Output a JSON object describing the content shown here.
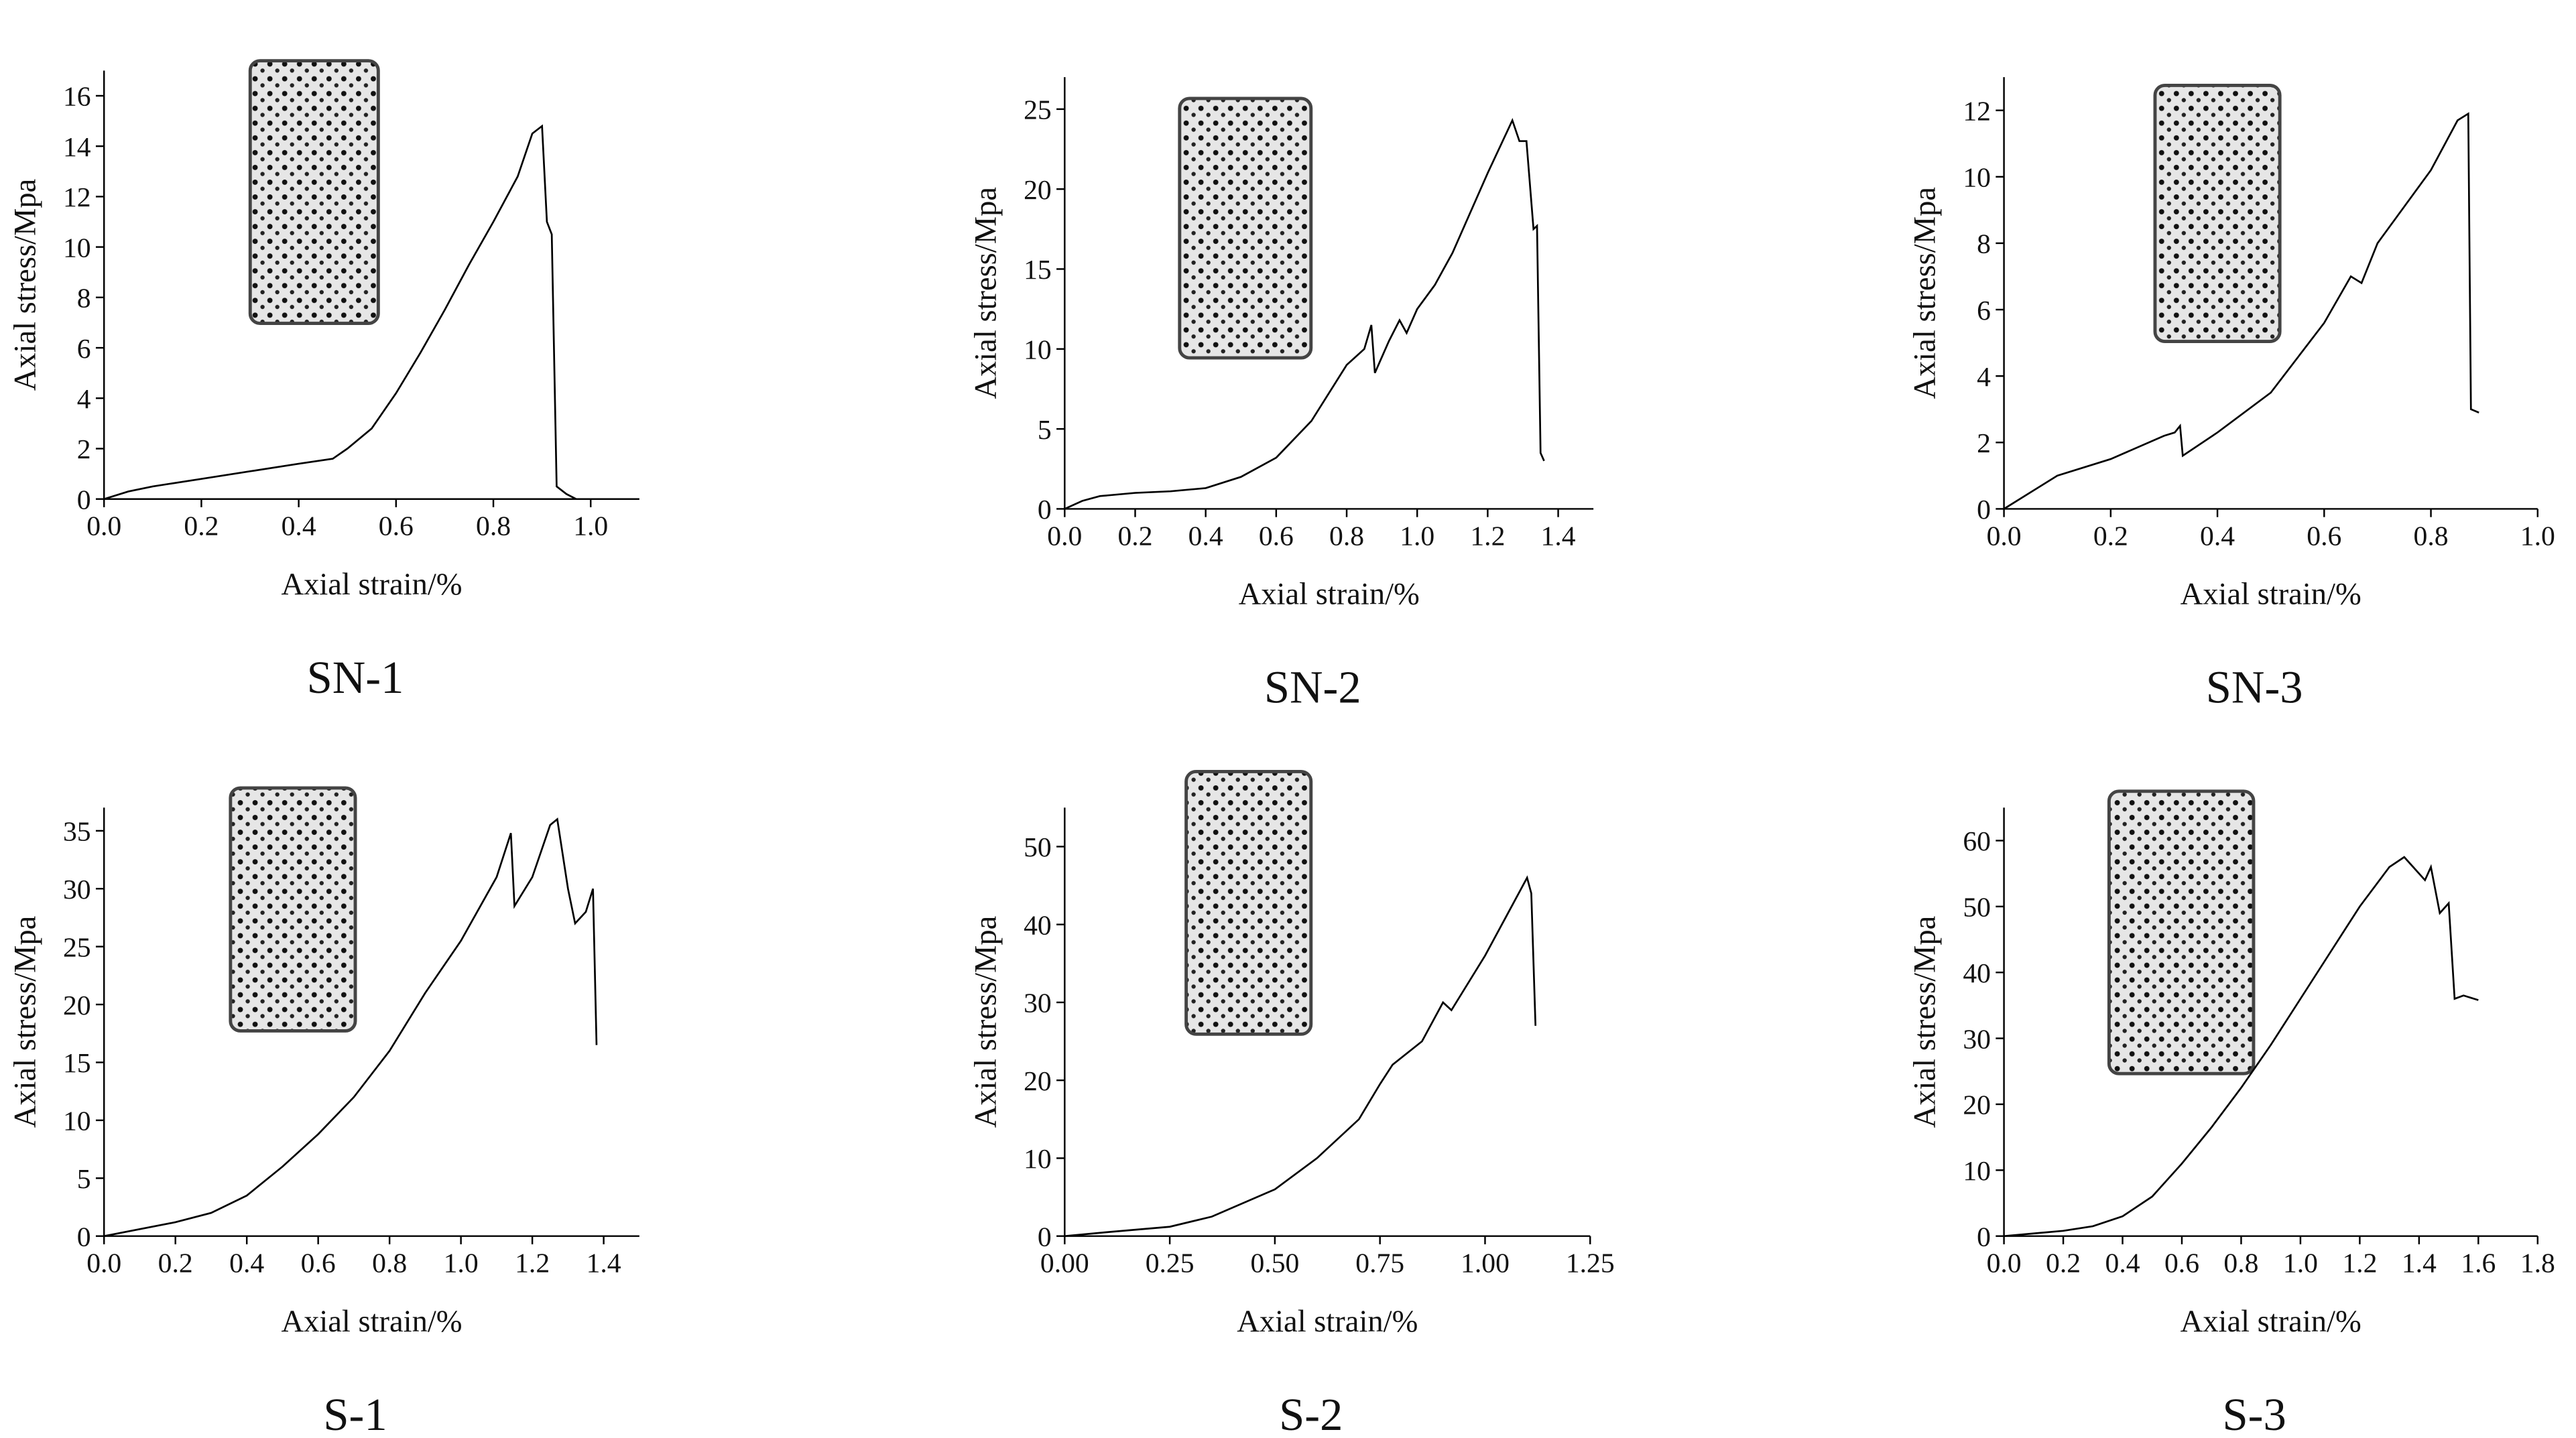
{
  "chart_data": [
    {
      "type": "line",
      "title": "SN-1",
      "x_label": "Axial strain/%",
      "y_label": "Axial stress/Mpa",
      "color": "#000000",
      "x": [
        0,
        0.05,
        0.1,
        0.2,
        0.3,
        0.4,
        0.47,
        0.5,
        0.55,
        0.6,
        0.65,
        0.7,
        0.75,
        0.8,
        0.85,
        0.88,
        0.9,
        0.91,
        0.92,
        0.93,
        0.95,
        0.97
      ],
      "values": [
        0,
        0.3,
        0.5,
        0.8,
        1.1,
        1.4,
        1.6,
        2.0,
        2.8,
        4.2,
        5.8,
        7.5,
        9.3,
        11,
        12.8,
        14.5,
        14.8,
        11,
        10.5,
        0.5,
        0.2,
        0
      ],
      "xlim": [
        0,
        1.1
      ],
      "ylim": [
        0,
        17
      ],
      "xticks": [
        {
          "value": 0,
          "label": "0.0"
        },
        0.2,
        0.4,
        0.6,
        0.8,
        {
          "value": 1,
          "label": "1.0"
        }
      ],
      "yticks": [
        0,
        2,
        4,
        6,
        8,
        10,
        12,
        14,
        16
      ]
    },
    {
      "type": "line",
      "title": "SN-2",
      "x_label": "Axial strain/%",
      "y_label": "Axial stress/Mpa",
      "color": "#000000",
      "x": [
        0,
        0.05,
        0.1,
        0.2,
        0.3,
        0.4,
        0.5,
        0.6,
        0.7,
        0.8,
        0.85,
        0.87,
        0.88,
        0.92,
        0.95,
        0.97,
        1.0,
        1.05,
        1.1,
        1.2,
        1.27,
        1.29,
        1.31,
        1.33,
        1.34,
        1.35,
        1.36
      ],
      "values": [
        0,
        0.5,
        0.8,
        1,
        1.1,
        1.3,
        2,
        3.2,
        5.5,
        9,
        10,
        11.5,
        8.5,
        10.5,
        11.8,
        11,
        12.5,
        14,
        16,
        21,
        24.3,
        23,
        23,
        17.5,
        17.7,
        3.5,
        3
      ],
      "xlim": [
        0,
        1.5
      ],
      "ylim": [
        0,
        27
      ],
      "xticks": [
        {
          "value": 0,
          "label": "0.0"
        },
        0.2,
        0.4,
        0.6,
        0.8,
        {
          "value": 1,
          "label": "1.0"
        },
        1.2,
        1.4
      ],
      "yticks": [
        0,
        5,
        10,
        15,
        20,
        25
      ]
    },
    {
      "type": "line",
      "title": "SN-3",
      "x_label": "Axial strain/%",
      "y_label": "Axial stress/Mpa",
      "color": "#000000",
      "x": [
        0,
        0.05,
        0.1,
        0.2,
        0.3,
        0.32,
        0.33,
        0.335,
        0.4,
        0.5,
        0.6,
        0.65,
        0.67,
        0.7,
        0.8,
        0.85,
        0.87,
        0.875,
        0.89
      ],
      "values": [
        0,
        0.5,
        1,
        1.5,
        2.2,
        2.3,
        2.5,
        1.6,
        2.3,
        3.5,
        5.6,
        7,
        6.8,
        8,
        10.2,
        11.7,
        11.9,
        3,
        2.9
      ],
      "xlim": [
        0,
        1.0
      ],
      "ylim": [
        0,
        13
      ],
      "xticks": [
        {
          "value": 0,
          "label": "0.0"
        },
        0.2,
        0.4,
        0.6,
        0.8,
        {
          "value": 1,
          "label": "1.0"
        }
      ],
      "yticks": [
        0,
        2,
        4,
        6,
        8,
        10,
        12
      ]
    },
    {
      "type": "line",
      "title": "S-1",
      "x_label": "Axial strain/%",
      "y_label": "Axial stress/Mpa",
      "color": "#000000",
      "x": [
        0,
        0.2,
        0.3,
        0.4,
        0.5,
        0.6,
        0.7,
        0.8,
        0.9,
        1.0,
        1.1,
        1.14,
        1.15,
        1.2,
        1.25,
        1.27,
        1.3,
        1.32,
        1.35,
        1.37,
        1.38
      ],
      "values": [
        0,
        1.2,
        2,
        3.5,
        6,
        8.8,
        12,
        16,
        21,
        25.5,
        31,
        34.8,
        28.5,
        31,
        35.5,
        36,
        30,
        27,
        28,
        30,
        16.5
      ],
      "xlim": [
        0,
        1.5
      ],
      "ylim": [
        0,
        37
      ],
      "xticks": [
        {
          "value": 0,
          "label": "0.0"
        },
        0.2,
        0.4,
        0.6,
        0.8,
        {
          "value": 1,
          "label": "1.0"
        },
        1.2,
        1.4
      ],
      "yticks": [
        0,
        5,
        10,
        15,
        20,
        25,
        30,
        35
      ]
    },
    {
      "type": "line",
      "title": "S-2",
      "x_label": "Axial strain/%",
      "y_label": "Axial stress/Mpa",
      "color": "#000000",
      "x": [
        0,
        0.1,
        0.25,
        0.35,
        0.5,
        0.6,
        0.7,
        0.75,
        0.78,
        0.85,
        0.9,
        0.92,
        1.0,
        1.05,
        1.1,
        1.11,
        1.12
      ],
      "values": [
        0,
        0.5,
        1.2,
        2.5,
        6,
        10,
        15,
        19.5,
        22,
        25,
        30,
        29,
        36,
        41,
        46,
        44,
        27
      ],
      "xlim": [
        0,
        1.25
      ],
      "ylim": [
        0,
        55
      ],
      "xticks": [
        {
          "value": 0,
          "label": "0.00"
        },
        0.25,
        {
          "value": 0.5,
          "label": "0.50"
        },
        0.75,
        {
          "value": 1,
          "label": "1.00"
        },
        1.25
      ],
      "yticks": [
        0,
        10,
        20,
        30,
        40,
        50
      ]
    },
    {
      "type": "line",
      "title": "S-3",
      "x_label": "Axial strain/%",
      "y_label": "Axial stress/Mpa",
      "color": "#000000",
      "x": [
        0,
        0.2,
        0.3,
        0.4,
        0.5,
        0.6,
        0.7,
        0.8,
        0.9,
        1.0,
        1.1,
        1.2,
        1.3,
        1.35,
        1.38,
        1.42,
        1.44,
        1.47,
        1.5,
        1.52,
        1.55,
        1.6
      ],
      "values": [
        0,
        0.8,
        1.5,
        3,
        6,
        11,
        16.5,
        22.5,
        29,
        36,
        43,
        50,
        56,
        57.5,
        56,
        54,
        56,
        49,
        50.5,
        36,
        36.5,
        35.8
      ],
      "xlim": [
        0,
        1.8
      ],
      "ylim": [
        0,
        65
      ],
      "xticks": [
        {
          "value": 0,
          "label": "0.0"
        },
        0.2,
        0.4,
        0.6,
        0.8,
        {
          "value": 1,
          "label": "1.0"
        },
        1.2,
        1.4,
        1.6,
        1.8
      ],
      "yticks": [
        0,
        10,
        20,
        30,
        40,
        50,
        60
      ]
    }
  ]
}
